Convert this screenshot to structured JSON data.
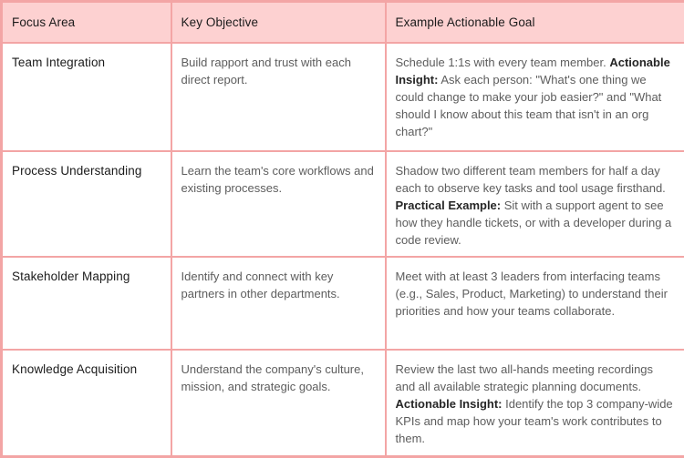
{
  "table": {
    "headers": [
      "Focus Area",
      "Key Objective",
      "Example Actionable Goal"
    ],
    "rows": [
      {
        "focus_area": "Team Integration",
        "key_objective": "Build rapport and trust with each direct report.",
        "goal_segments": [
          {
            "text": "Schedule 1:1s with every team member. ",
            "bold": false
          },
          {
            "text": "Actionable Insight:",
            "bold": true
          },
          {
            "text": " Ask each person: \"What's one thing we could change to make your job easier?\" and \"What should I know about this team that isn't in an org chart?\"",
            "bold": false
          }
        ]
      },
      {
        "focus_area": "Process Understanding",
        "key_objective": "Learn the team's core workflows and existing processes.",
        "goal_segments": [
          {
            "text": "Shadow two different team members for half a day each to observe key tasks and tool usage firsthand. ",
            "bold": false
          },
          {
            "text": "Practical Example:",
            "bold": true
          },
          {
            "text": " Sit with a support agent to see how they handle tickets, or with a developer during a code review.",
            "bold": false
          }
        ]
      },
      {
        "focus_area": "Stakeholder Mapping",
        "key_objective": "Identify and connect with key partners in other departments.",
        "goal_segments": [
          {
            "text": "Meet with at least 3 leaders from interfacing teams (e.g., Sales, Product, Marketing) to understand their priorities and how your teams collaborate.",
            "bold": false
          }
        ]
      },
      {
        "focus_area": "Knowledge Acquisition",
        "key_objective": "Understand the company's culture, mission, and strategic goals.",
        "goal_segments": [
          {
            "text": "Review the last two all-hands meeting recordings and all available strategic planning documents. ",
            "bold": false
          },
          {
            "text": "Actionable Insight:",
            "bold": true
          },
          {
            "text": " Identify the top 3 company-wide KPIs and map how your team's work contributes to them.",
            "bold": false
          }
        ]
      }
    ]
  },
  "colors": {
    "border": "#f3a5a5",
    "header_background": "#fdd1d1",
    "dark_text": "#1b1b1b",
    "body_text": "#5d5d5d",
    "bold_text": "#262626",
    "cell_background": "#ffffff"
  }
}
